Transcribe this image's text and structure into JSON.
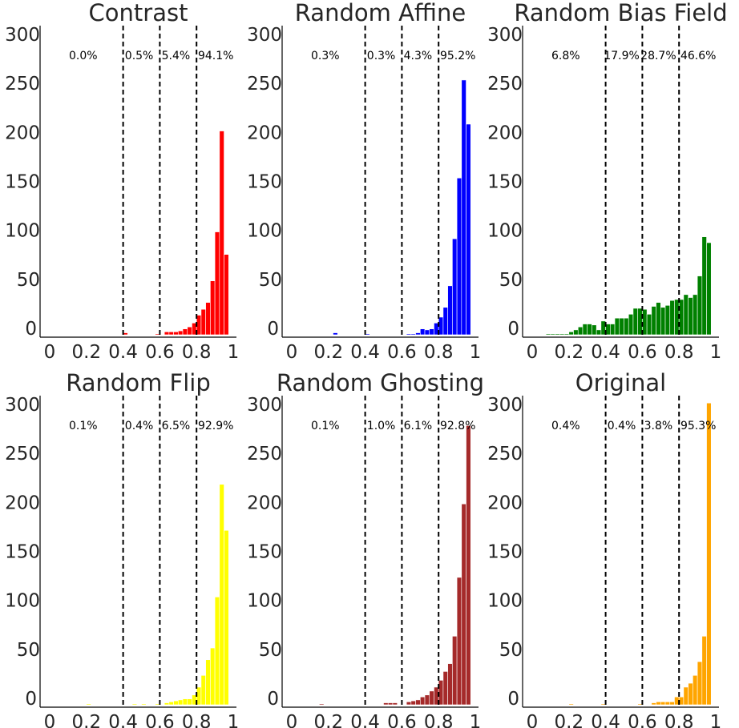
{
  "chart_data": [
    {
      "type": "bar",
      "title": "Contrast",
      "color": "#ff0000",
      "xlim": [
        0,
        1
      ],
      "ylim": [
        0,
        320
      ],
      "xticks": [
        "0",
        "0.2",
        "0.4",
        "0.6",
        "0.8",
        "1"
      ],
      "yticks": [
        "0",
        "50",
        "100",
        "150",
        "200",
        "250",
        "300"
      ],
      "bin_width": 0.025,
      "bin_starts": [
        0.4,
        0.575,
        0.625,
        0.65,
        0.675,
        0.7,
        0.725,
        0.75,
        0.775,
        0.8,
        0.825,
        0.85,
        0.875,
        0.9,
        0.925,
        0.95
      ],
      "values": [
        2,
        1,
        3,
        3,
        3,
        4,
        6,
        8,
        12,
        20,
        26,
        33,
        55,
        105,
        208,
        82
      ],
      "thresholds": [
        0.4,
        0.6,
        0.8
      ],
      "region_labels": [
        "0.0%",
        "0.5%",
        "5.4%",
        "94.1%"
      ]
    },
    {
      "type": "bar",
      "title": "Random Affine",
      "color": "#0000ff",
      "xlim": [
        0,
        1
      ],
      "ylim": [
        0,
        320
      ],
      "xticks": [
        "0",
        "0.2",
        "0.4",
        "0.6",
        "0.8",
        "1"
      ],
      "yticks": [
        "0",
        "50",
        "100",
        "150",
        "200",
        "250",
        "300"
      ],
      "bin_width": 0.025,
      "bin_starts": [
        0.225,
        0.4,
        0.625,
        0.65,
        0.675,
        0.7,
        0.725,
        0.75,
        0.775,
        0.8,
        0.825,
        0.85,
        0.875,
        0.9,
        0.925,
        0.95
      ],
      "values": [
        2,
        1,
        1,
        1,
        2,
        6,
        5,
        6,
        12,
        18,
        28,
        50,
        98,
        160,
        260,
        215
      ],
      "thresholds": [
        0.4,
        0.6,
        0.8
      ],
      "region_labels": [
        "0.3%",
        "0.3%",
        "4.3%",
        "95.2%"
      ]
    },
    {
      "type": "bar",
      "title": "Random Bias Field",
      "color": "#008000",
      "xlim": [
        0,
        1
      ],
      "ylim": [
        0,
        320
      ],
      "xticks": [
        "0",
        "0.2",
        "0.4",
        "0.6",
        "0.8",
        "1"
      ],
      "yticks": [
        "0",
        "50",
        "100",
        "150",
        "200",
        "250",
        "300"
      ],
      "bin_width": 0.025,
      "bin_starts": [
        0.075,
        0.1,
        0.125,
        0.15,
        0.175,
        0.2,
        0.225,
        0.25,
        0.275,
        0.3,
        0.325,
        0.35,
        0.375,
        0.4,
        0.425,
        0.45,
        0.475,
        0.5,
        0.525,
        0.55,
        0.575,
        0.6,
        0.625,
        0.65,
        0.675,
        0.7,
        0.725,
        0.75,
        0.775,
        0.8,
        0.825,
        0.85,
        0.875,
        0.9,
        0.925,
        0.95
      ],
      "values": [
        1,
        1,
        1,
        1,
        1,
        3,
        5,
        8,
        11,
        11,
        10,
        5,
        14,
        11,
        11,
        17,
        17,
        17,
        21,
        27,
        27,
        26,
        21,
        29,
        33,
        28,
        30,
        35,
        36,
        36,
        41,
        38,
        41,
        60,
        100,
        94
      ],
      "thresholds": [
        0.4,
        0.6,
        0.8
      ],
      "region_labels": [
        "6.8%",
        "17.9%",
        "28.7%",
        "46.6%"
      ]
    },
    {
      "type": "bar",
      "title": "Random Flip",
      "color": "#ffff00",
      "xlim": [
        0,
        1
      ],
      "ylim": [
        0,
        320
      ],
      "xticks": [
        "0",
        "0.2",
        "0.4",
        "0.6",
        "0.8",
        "1"
      ],
      "yticks": [
        "0",
        "50",
        "100",
        "150",
        "200",
        "250",
        "300"
      ],
      "bin_width": 0.025,
      "bin_starts": [
        0.2,
        0.45,
        0.5,
        0.575,
        0.625,
        0.65,
        0.675,
        0.7,
        0.725,
        0.75,
        0.775,
        0.8,
        0.825,
        0.85,
        0.875,
        0.9,
        0.925,
        0.95
      ],
      "values": [
        1,
        1,
        1,
        1,
        2,
        3,
        4,
        5,
        6,
        6,
        10,
        18,
        30,
        46,
        58,
        110,
        225,
        178
      ],
      "thresholds": [
        0.4,
        0.6,
        0.8
      ],
      "region_labels": [
        "0.1%",
        "0.4%",
        "6.5%",
        "92.9%"
      ]
    },
    {
      "type": "bar",
      "title": "Random Ghosting",
      "color": "#a52a2a",
      "xlim": [
        0,
        1
      ],
      "ylim": [
        0,
        320
      ],
      "xticks": [
        "0",
        "0.2",
        "0.4",
        "0.6",
        "0.8",
        "1"
      ],
      "yticks": [
        "0",
        "50",
        "100",
        "150",
        "200",
        "250",
        "300"
      ],
      "bin_width": 0.025,
      "bin_starts": [
        0.15,
        0.5,
        0.525,
        0.55,
        0.625,
        0.65,
        0.675,
        0.7,
        0.725,
        0.75,
        0.775,
        0.8,
        0.825,
        0.85,
        0.875,
        0.9,
        0.925,
        0.95
      ],
      "values": [
        1,
        2,
        2,
        2,
        3,
        4,
        5,
        8,
        10,
        14,
        18,
        25,
        34,
        42,
        70,
        130,
        205,
        285
      ],
      "thresholds": [
        0.4,
        0.6,
        0.8
      ],
      "region_labels": [
        "0.1%",
        "1.0%",
        "6.1%",
        "92.8%"
      ]
    },
    {
      "type": "bar",
      "title": "Original",
      "color": "#ffa500",
      "xlim": [
        0,
        1
      ],
      "ylim": [
        0,
        320
      ],
      "xticks": [
        "0",
        "0.2",
        "0.4",
        "0.6",
        "0.8",
        "1"
      ],
      "yticks": [
        "0",
        "50",
        "100",
        "150",
        "200",
        "250",
        "300"
      ],
      "bin_width": 0.025,
      "bin_starts": [
        0.2,
        0.375,
        0.575,
        0.65,
        0.675,
        0.7,
        0.725,
        0.75,
        0.775,
        0.8,
        0.825,
        0.85,
        0.875,
        0.9,
        0.925,
        0.95
      ],
      "values": [
        1,
        1,
        1,
        2,
        3,
        3,
        3,
        3,
        8,
        8,
        18,
        22,
        30,
        44,
        70,
        308
      ],
      "thresholds": [
        0.4,
        0.6,
        0.8
      ],
      "region_labels": [
        "0.4%",
        "0.4%",
        "3.8%",
        "95.3%"
      ]
    }
  ]
}
